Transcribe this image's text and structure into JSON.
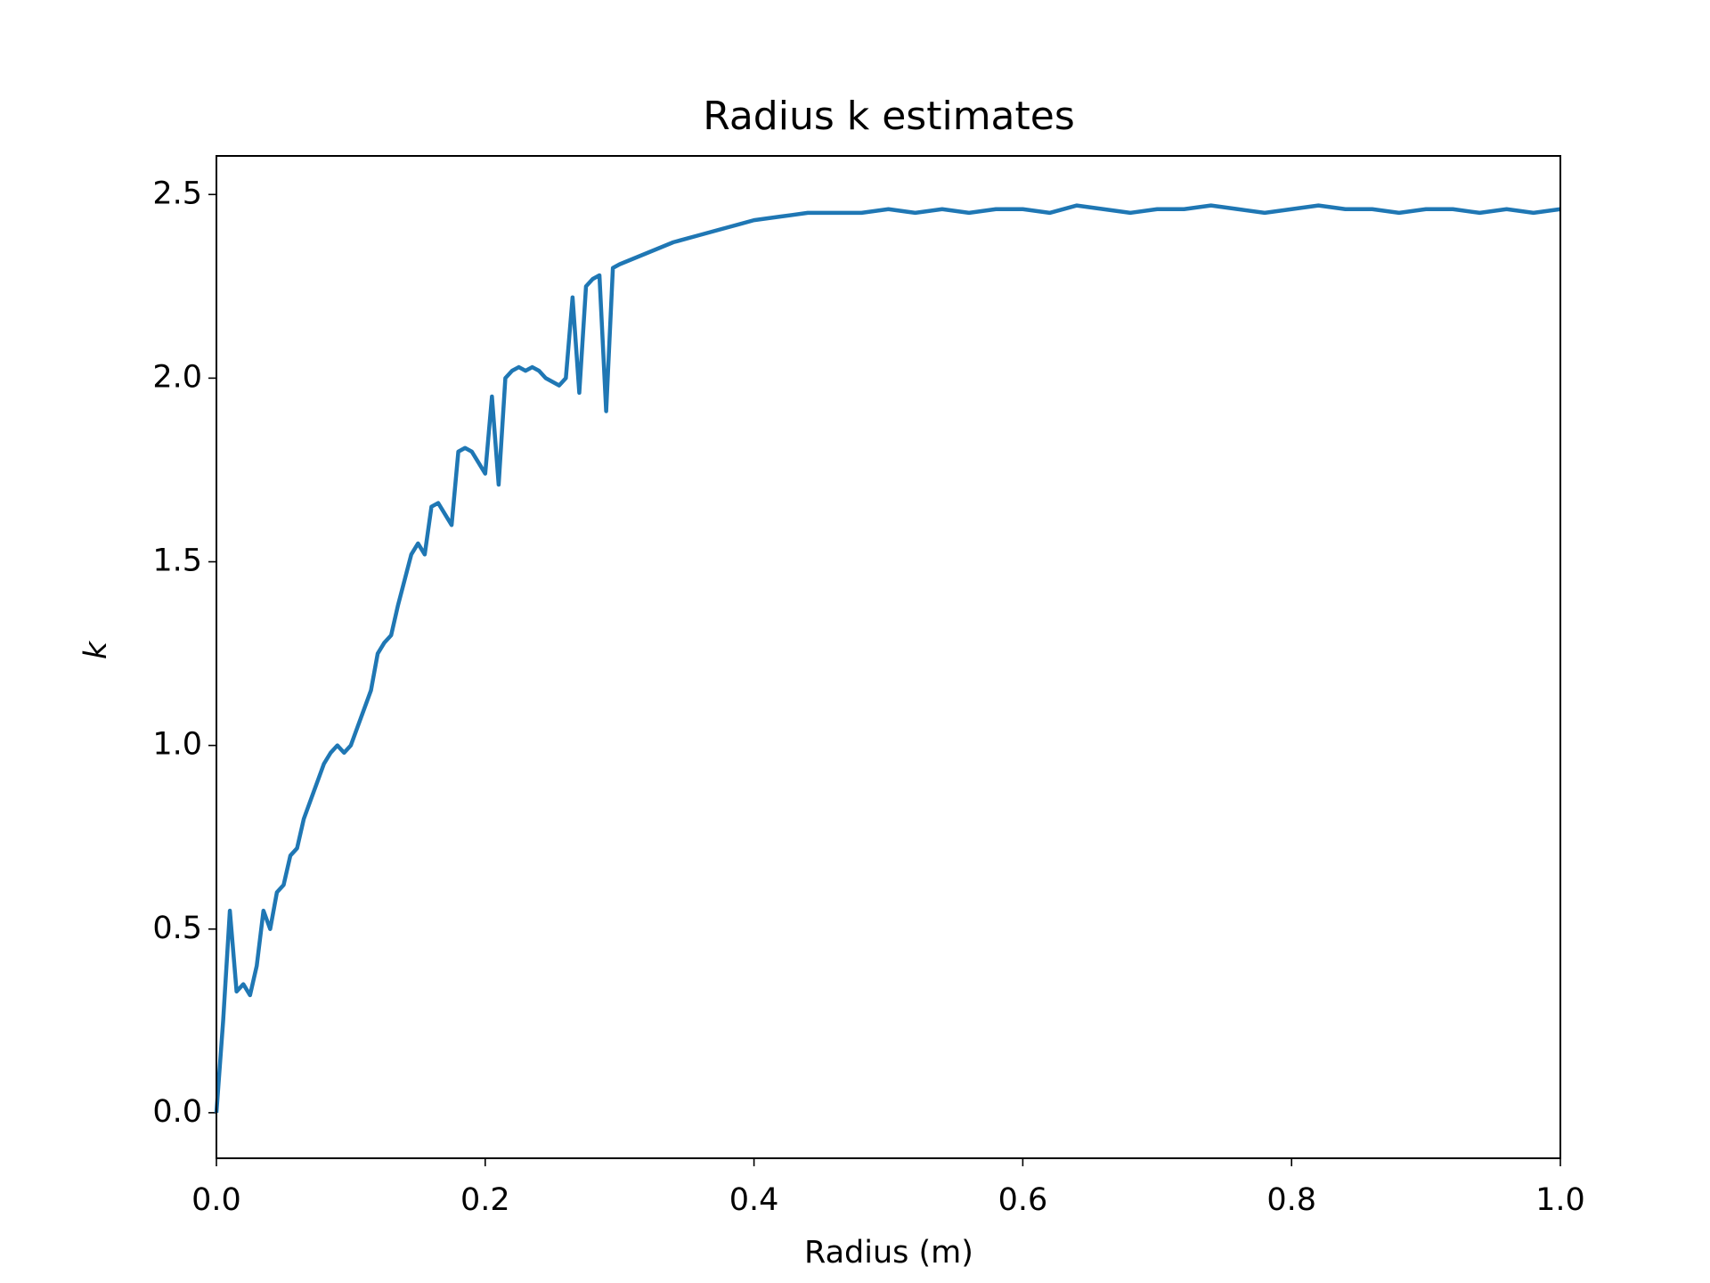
{
  "chart_data": {
    "type": "line",
    "title": "Radius k estimates",
    "xlabel": "Radius (m)",
    "ylabel": "k",
    "x": [
      0,
      0.005,
      0.01,
      0.015,
      0.02,
      0.025,
      0.03,
      0.035,
      0.04,
      0.045,
      0.05,
      0.055,
      0.06,
      0.065,
      0.07,
      0.075,
      0.08,
      0.085,
      0.09,
      0.095,
      0.1,
      0.105,
      0.11,
      0.115,
      0.12,
      0.125,
      0.13,
      0.135,
      0.14,
      0.145,
      0.15,
      0.155,
      0.16,
      0.165,
      0.17,
      0.175,
      0.18,
      0.185,
      0.19,
      0.195,
      0.2,
      0.205,
      0.21,
      0.215,
      0.22,
      0.225,
      0.23,
      0.235,
      0.24,
      0.245,
      0.25,
      0.255,
      0.26,
      0.265,
      0.27,
      0.275,
      0.28,
      0.285,
      0.29,
      0.295,
      0.3,
      0.32,
      0.34,
      0.36,
      0.38,
      0.4,
      0.42,
      0.44,
      0.46,
      0.48,
      0.5,
      0.52,
      0.54,
      0.56,
      0.58,
      0.6,
      0.62,
      0.64,
      0.66,
      0.68,
      0.7,
      0.72,
      0.74,
      0.76,
      0.78,
      0.8,
      0.82,
      0.84,
      0.86,
      0.88,
      0.9,
      0.92,
      0.94,
      0.96,
      0.98,
      1.0
    ],
    "series": [
      {
        "name": "k",
        "color": "#1f77b4",
        "values": [
          0,
          0.25,
          0.55,
          0.33,
          0.35,
          0.32,
          0.4,
          0.55,
          0.5,
          0.6,
          0.62,
          0.7,
          0.72,
          0.8,
          0.85,
          0.9,
          0.95,
          0.98,
          1.0,
          0.98,
          1.0,
          1.05,
          1.1,
          1.15,
          1.25,
          1.28,
          1.3,
          1.38,
          1.45,
          1.52,
          1.55,
          1.52,
          1.65,
          1.66,
          1.63,
          1.6,
          1.8,
          1.81,
          1.8,
          1.77,
          1.74,
          1.95,
          1.71,
          2.0,
          2.02,
          2.03,
          2.02,
          2.03,
          2.02,
          2.0,
          1.99,
          1.98,
          2.0,
          2.22,
          1.96,
          2.25,
          2.27,
          2.28,
          1.91,
          2.3,
          2.31,
          2.34,
          2.37,
          2.39,
          2.41,
          2.43,
          2.44,
          2.45,
          2.45,
          2.45,
          2.46,
          2.45,
          2.46,
          2.45,
          2.46,
          2.46,
          2.45,
          2.47,
          2.46,
          2.45,
          2.46,
          2.46,
          2.47,
          2.46,
          2.45,
          2.46,
          2.47,
          2.46,
          2.46,
          2.45,
          2.46,
          2.46,
          2.45,
          2.46,
          2.45,
          2.46
        ]
      }
    ],
    "xlim": [
      0,
      1
    ],
    "ylim": [
      -0.124,
      2.605
    ],
    "xticks": [
      {
        "value": 0,
        "label": "0.0"
      },
      0.2,
      0.4,
      0.6,
      0.8,
      {
        "value": 1,
        "label": "1.0"
      }
    ],
    "yticks": [
      {
        "value": 0,
        "label": "0.0"
      },
      0.5,
      {
        "value": 1,
        "label": "1.0"
      },
      1.5,
      {
        "value": 2,
        "label": "2.0"
      },
      2.5
    ]
  }
}
